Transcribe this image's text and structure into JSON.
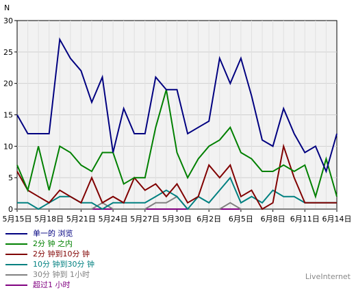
{
  "chart_data": {
    "type": "line",
    "ylabel": "N",
    "ylim": [
      0,
      30
    ],
    "yticks": [
      0,
      5,
      10,
      15,
      20,
      25,
      30
    ],
    "grid": true,
    "legend_position": "bottom-left",
    "xticks": [
      {
        "i": 0,
        "label": "5月15日"
      },
      {
        "i": 3,
        "label": "5月18日"
      },
      {
        "i": 6,
        "label": "5月21日"
      },
      {
        "i": 9,
        "label": "5月24日"
      },
      {
        "i": 12,
        "label": "5月27日"
      },
      {
        "i": 15,
        "label": "5月30日"
      },
      {
        "i": 18,
        "label": "6月2日"
      },
      {
        "i": 21,
        "label": "6月5日"
      },
      {
        "i": 24,
        "label": "6月8日"
      },
      {
        "i": 27,
        "label": "6月11日"
      },
      {
        "i": 30,
        "label": "6月14日"
      }
    ],
    "series": [
      {
        "name": "单一的 浏览",
        "color": "#000080",
        "values": [
          15,
          12,
          12,
          12,
          27,
          24,
          22,
          17,
          21,
          9,
          16,
          12,
          12,
          21,
          19,
          19,
          12,
          13,
          14,
          24,
          20,
          24,
          18,
          11,
          10,
          16,
          12,
          9,
          10,
          6,
          12
        ]
      },
      {
        "name": "2分 钟 之内",
        "color": "#008000",
        "values": [
          7,
          3,
          10,
          3,
          10,
          9,
          7,
          6,
          9,
          9,
          4,
          5,
          5,
          13,
          19,
          9,
          5,
          8,
          10,
          11,
          13,
          9,
          8,
          6,
          6,
          7,
          6,
          7,
          2,
          8,
          2
        ]
      },
      {
        "name": "2分 钟到10分 钟",
        "color": "#800000",
        "values": [
          6,
          3,
          2,
          1,
          3,
          2,
          1,
          5,
          1,
          2,
          1,
          5,
          3,
          4,
          2,
          4,
          1,
          2,
          7,
          5,
          7,
          2,
          3,
          0,
          1,
          10,
          5,
          1,
          1,
          1,
          1
        ]
      },
      {
        "name": "10分 钟到30分 钟",
        "color": "#008080",
        "values": [
          1,
          1,
          0,
          1,
          2,
          2,
          1,
          1,
          0,
          1,
          1,
          1,
          1,
          2,
          3,
          2,
          0,
          2,
          1,
          3,
          5,
          1,
          2,
          1,
          3,
          2,
          2,
          1,
          1,
          1,
          1
        ]
      },
      {
        "name": "30分 钟到 1小时",
        "color": "#808080",
        "values": [
          0,
          0,
          0,
          0,
          0,
          0,
          0,
          0,
          1,
          0,
          0,
          0,
          0,
          1,
          1,
          2,
          0,
          0,
          0,
          0,
          1,
          0,
          0,
          0,
          0,
          0,
          0,
          0,
          0,
          0,
          0
        ]
      },
      {
        "name": "超过1 小时",
        "color": "#800080",
        "values": [
          0,
          0,
          0,
          0,
          0,
          0,
          0,
          0,
          0,
          0,
          0,
          0,
          0,
          0,
          0,
          0,
          0,
          0,
          0,
          0,
          0,
          0,
          0,
          0,
          0,
          0,
          0,
          0,
          0,
          0,
          0
        ]
      }
    ]
  },
  "footer": "LiveInternet"
}
